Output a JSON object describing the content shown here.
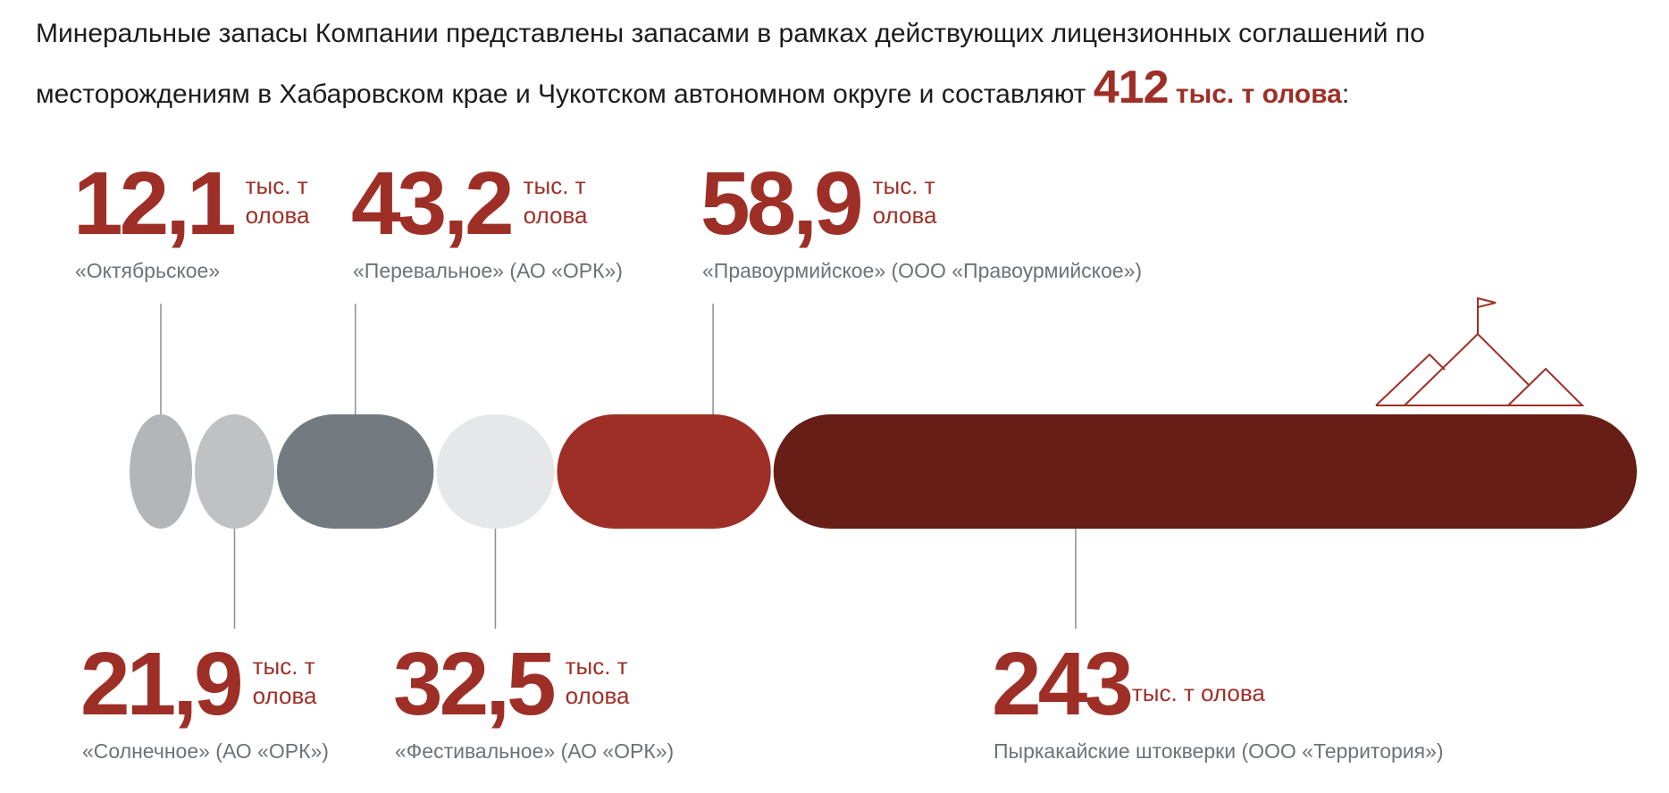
{
  "intro": {
    "text": "Минеральные запасы Компании представлены запасами в рамках действующих лицензионных соглашений по месторождениям в Хабаровском крае и Чукотском автономном округе и составляют",
    "total_value": "412",
    "total_unit": "тыс. т олова",
    "end": ":"
  },
  "chart_data": {
    "type": "bar",
    "orientation": "horizontal-stacked",
    "unit": "тыс. т олова",
    "total": 412,
    "categories": [
      "«Октябрьское»",
      "«Солнечное» (АО «ОРК»)",
      "«Перевальное» (АО «ОРК»)",
      "«Фестивальное» (АО «ОРК»)",
      "«Правоурмийское» (ООО «Правоурмийское»)",
      "Пыркакайские штокверки (ООО «Территория»)"
    ],
    "values": [
      12.1,
      21.9,
      43.2,
      32.5,
      58.9,
      243
    ],
    "value_labels": [
      "12,1",
      "21,9",
      "43,2",
      "32,5",
      "58,9",
      "243"
    ],
    "unit_line1": "тыс. т",
    "unit_line2": "олова",
    "colors": [
      "#b3b6b9",
      "#bfc2c4",
      "#747b80",
      "#e6e7e8",
      "#9e2f26",
      "#661e16"
    ],
    "label_positions": [
      "top",
      "bottom",
      "top",
      "bottom",
      "top",
      "bottom"
    ]
  }
}
